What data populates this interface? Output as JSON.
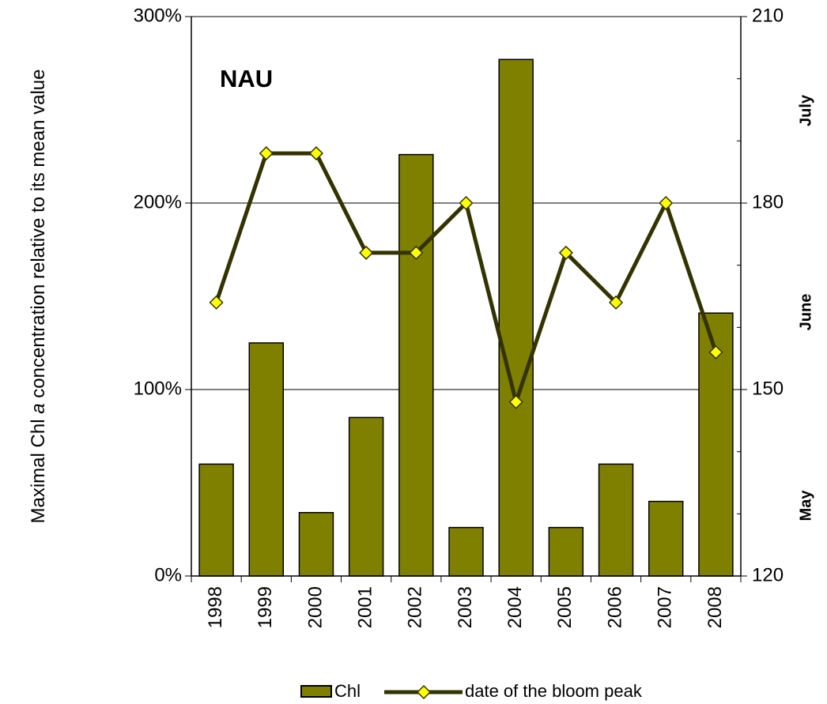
{
  "chart_data": {
    "type": "bar-line",
    "title": "NAU",
    "ylabel_parts": [
      "Maximal Chl ",
      "a",
      " concentration relative to its mean value"
    ],
    "categories": [
      "1998",
      "1999",
      "2000",
      "2001",
      "2002",
      "2003",
      "2004",
      "2005",
      "2006",
      "2007",
      "2008"
    ],
    "series": [
      {
        "name": "Chl",
        "type": "bar",
        "color": "#808000",
        "values": [
          60,
          125,
          34,
          85,
          226,
          26,
          277,
          26,
          60,
          40,
          141
        ]
      },
      {
        "name": "date of the bloom peak",
        "type": "line",
        "axis": "y2",
        "color": "#333300",
        "marker_color": "#ffff00",
        "values": [
          164,
          188,
          188,
          172,
          172,
          180,
          148,
          172,
          164,
          180,
          156
        ]
      }
    ],
    "ylim": [
      0,
      300
    ],
    "yticks": [
      {
        "value": 0,
        "label": "0%"
      },
      {
        "value": 100,
        "label": "100%"
      },
      {
        "value": 200,
        "label": "200%"
      },
      {
        "value": 300,
        "label": "300%"
      }
    ],
    "y2lim": [
      120,
      210
    ],
    "y2ticks": [
      120,
      150,
      180,
      210
    ],
    "y2minorticks": [
      130,
      140,
      160,
      170,
      190,
      200
    ],
    "month_labels": [
      "July",
      "June",
      "May"
    ],
    "grid": true
  }
}
